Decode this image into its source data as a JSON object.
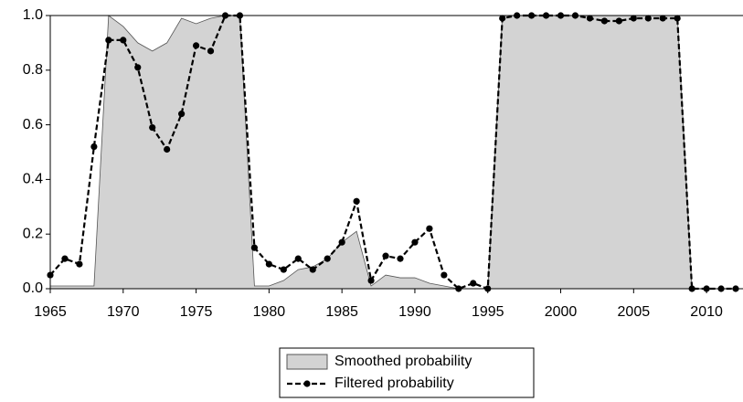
{
  "chart_data": {
    "type": "line",
    "x": [
      1965,
      1966,
      1967,
      1968,
      1969,
      1970,
      1971,
      1972,
      1973,
      1974,
      1975,
      1976,
      1977,
      1978,
      1979,
      1980,
      1981,
      1982,
      1983,
      1984,
      1985,
      1986,
      1987,
      1988,
      1989,
      1990,
      1991,
      1992,
      1993,
      1994,
      1995,
      1996,
      1997,
      1998,
      1999,
      2000,
      2001,
      2002,
      2003,
      2004,
      2005,
      2006,
      2007,
      2008,
      2009,
      2010,
      2011,
      2012
    ],
    "series": [
      {
        "name": "Smoothed probability",
        "type": "area",
        "color": "#d3d3d3",
        "values": [
          0.01,
          0.01,
          0.01,
          0.01,
          1.0,
          0.96,
          0.9,
          0.87,
          0.9,
          0.99,
          0.97,
          0.99,
          1.0,
          1.0,
          0.01,
          0.01,
          0.03,
          0.07,
          0.08,
          0.11,
          0.17,
          0.21,
          0.01,
          0.05,
          0.04,
          0.04,
          0.02,
          0.01,
          0.0,
          0.0,
          0.0,
          1.0,
          1.0,
          1.0,
          1.0,
          1.0,
          1.0,
          1.0,
          1.0,
          1.0,
          1.0,
          1.0,
          1.0,
          1.0,
          0.0,
          0.0,
          0.0,
          0.0
        ]
      },
      {
        "name": "Filtered probability",
        "type": "line",
        "dashed": true,
        "markers": true,
        "color": "#000000",
        "values": [
          0.05,
          0.11,
          0.09,
          0.52,
          0.91,
          0.91,
          0.81,
          0.59,
          0.51,
          0.64,
          0.89,
          0.87,
          1.0,
          1.0,
          0.15,
          0.09,
          0.07,
          0.11,
          0.07,
          0.11,
          0.17,
          0.32,
          0.03,
          0.12,
          0.11,
          0.17,
          0.22,
          0.05,
          0.0,
          0.02,
          0.0,
          0.99,
          1.0,
          1.0,
          1.0,
          1.0,
          1.0,
          0.99,
          0.98,
          0.98,
          0.99,
          0.99,
          0.99,
          0.99,
          0.0,
          0.0,
          0.0,
          0.0
        ]
      }
    ],
    "xlim": [
      1965,
      2012.5
    ],
    "xticks": [
      1965,
      1970,
      1975,
      1980,
      1985,
      1990,
      1995,
      2000,
      2005,
      2010
    ],
    "ylim": [
      0,
      1
    ],
    "yticks": [
      {
        "value": 0,
        "label": "0.0"
      },
      0.2,
      0.4,
      0.6,
      0.8,
      {
        "value": 1,
        "label": "1.0"
      }
    ],
    "legend": "bottom"
  }
}
